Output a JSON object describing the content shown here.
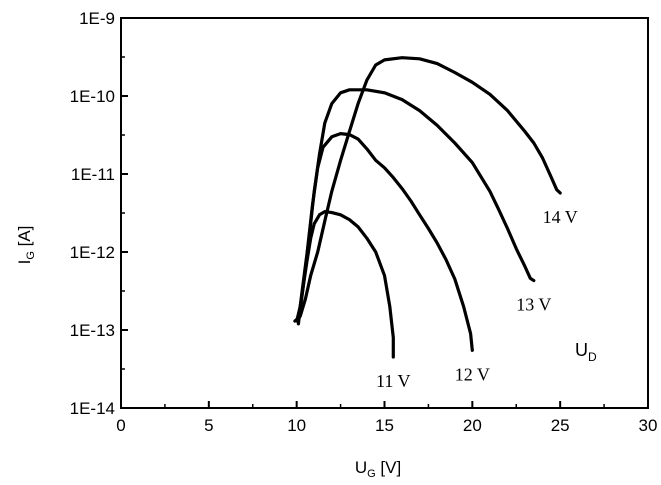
{
  "chart_data": {
    "type": "line",
    "xlabel": "U",
    "xlabel_sub": "G",
    "xlabel_unit": " [V]",
    "ylabel": "I",
    "ylabel_sub": "G",
    "ylabel_unit": " [A]",
    "xlim": [
      0,
      30
    ],
    "ylim": [
      1e-14,
      1e-09
    ],
    "yscale": "log",
    "grid": false,
    "x_ticks": [
      0,
      5,
      10,
      15,
      20,
      25,
      30
    ],
    "y_ticks": [
      1e-14,
      1e-13,
      1e-12,
      1e-11,
      1e-10,
      1e-09
    ],
    "y_tick_labels": [
      "1E-14",
      "1E-13",
      "1E-12",
      "1E-11",
      "1E-10",
      "1E-9"
    ],
    "parameter_label": "U",
    "parameter_sub": "D",
    "series": [
      {
        "name": "11 V",
        "color": "#000000",
        "points": [
          [
            10.0,
            1.3e-13
          ],
          [
            10.2,
            2e-13
          ],
          [
            10.4,
            4e-13
          ],
          [
            10.6,
            8e-13
          ],
          [
            10.8,
            1.5e-12
          ],
          [
            11.0,
            2.3e-12
          ],
          [
            11.3,
            3e-12
          ],
          [
            11.6,
            3.3e-12
          ],
          [
            12.0,
            3.2e-12
          ],
          [
            12.5,
            3e-12
          ],
          [
            13.0,
            2.6e-12
          ],
          [
            13.5,
            2.1e-12
          ],
          [
            14.0,
            1.5e-12
          ],
          [
            14.5,
            1e-12
          ],
          [
            15.0,
            5e-13
          ],
          [
            15.3,
            2e-13
          ],
          [
            15.5,
            8e-14
          ],
          [
            15.5,
            4.5e-14
          ]
        ]
      },
      {
        "name": "12 V",
        "color": "#000000",
        "points": [
          [
            10.1,
            1.3e-13
          ],
          [
            10.3,
            3e-13
          ],
          [
            10.6,
            1e-12
          ],
          [
            10.9,
            4e-12
          ],
          [
            11.2,
            1.2e-11
          ],
          [
            11.5,
            2.2e-11
          ],
          [
            12.0,
            3e-11
          ],
          [
            12.5,
            3.3e-11
          ],
          [
            13.0,
            3.2e-11
          ],
          [
            13.5,
            2.8e-11
          ],
          [
            14.0,
            2.1e-11
          ],
          [
            14.5,
            1.5e-11
          ],
          [
            15.0,
            1.2e-11
          ],
          [
            15.5,
            9e-12
          ],
          [
            16.0,
            6.5e-12
          ],
          [
            16.5,
            4.5e-12
          ],
          [
            17.0,
            3e-12
          ],
          [
            17.5,
            2e-12
          ],
          [
            18.0,
            1.3e-12
          ],
          [
            18.5,
            8e-13
          ],
          [
            19.0,
            4.5e-13
          ],
          [
            19.5,
            2e-13
          ],
          [
            19.9,
            9e-14
          ],
          [
            20.0,
            5.5e-14
          ]
        ]
      },
      {
        "name": "13 V",
        "color": "#000000",
        "points": [
          [
            10.1,
            1.2e-13
          ],
          [
            10.4,
            4e-13
          ],
          [
            10.7,
            1.5e-12
          ],
          [
            11.0,
            6e-12
          ],
          [
            11.3,
            1.8e-11
          ],
          [
            11.6,
            4.5e-11
          ],
          [
            12.0,
            8e-11
          ],
          [
            12.5,
            1.1e-10
          ],
          [
            13.0,
            1.2e-10
          ],
          [
            14.0,
            1.2e-10
          ],
          [
            15.0,
            1.1e-10
          ],
          [
            16.0,
            9e-11
          ],
          [
            17.0,
            6.5e-11
          ],
          [
            18.0,
            4.2e-11
          ],
          [
            19.0,
            2.5e-11
          ],
          [
            20.0,
            1.4e-11
          ],
          [
            21.0,
            6e-12
          ],
          [
            21.5,
            3.5e-12
          ],
          [
            22.0,
            2e-12
          ],
          [
            22.5,
            1.1e-12
          ],
          [
            23.0,
            6.5e-13
          ],
          [
            23.3,
            4.6e-13
          ],
          [
            23.5,
            4.3e-13
          ]
        ]
      },
      {
        "name": "14 V",
        "color": "#000000",
        "points": [
          [
            9.9,
            1.3e-13
          ],
          [
            10.2,
            1.5e-13
          ],
          [
            10.5,
            2.5e-13
          ],
          [
            10.8,
            5e-13
          ],
          [
            11.2,
            1e-12
          ],
          [
            11.6,
            2.5e-12
          ],
          [
            12.0,
            6e-12
          ],
          [
            12.5,
            1.5e-11
          ],
          [
            13.0,
            3.5e-11
          ],
          [
            13.5,
            8e-11
          ],
          [
            14.0,
            1.6e-10
          ],
          [
            14.5,
            2.5e-10
          ],
          [
            15.0,
            2.9e-10
          ],
          [
            16.0,
            3.1e-10
          ],
          [
            17.0,
            3e-10
          ],
          [
            18.0,
            2.6e-10
          ],
          [
            19.0,
            2e-10
          ],
          [
            20.0,
            1.5e-10
          ],
          [
            21.0,
            1.05e-10
          ],
          [
            22.0,
            6.5e-11
          ],
          [
            23.0,
            3.5e-11
          ],
          [
            23.5,
            2.5e-11
          ],
          [
            24.0,
            1.6e-11
          ],
          [
            24.5,
            9e-12
          ],
          [
            24.8,
            6.3e-12
          ],
          [
            25.0,
            5.7e-12
          ]
        ]
      }
    ],
    "curve_labels": [
      {
        "text": "11 V",
        "series": 0
      },
      {
        "text": "12 V",
        "series": 1
      },
      {
        "text": "13 V",
        "series": 2
      },
      {
        "text": "14 V",
        "series": 3
      }
    ]
  }
}
